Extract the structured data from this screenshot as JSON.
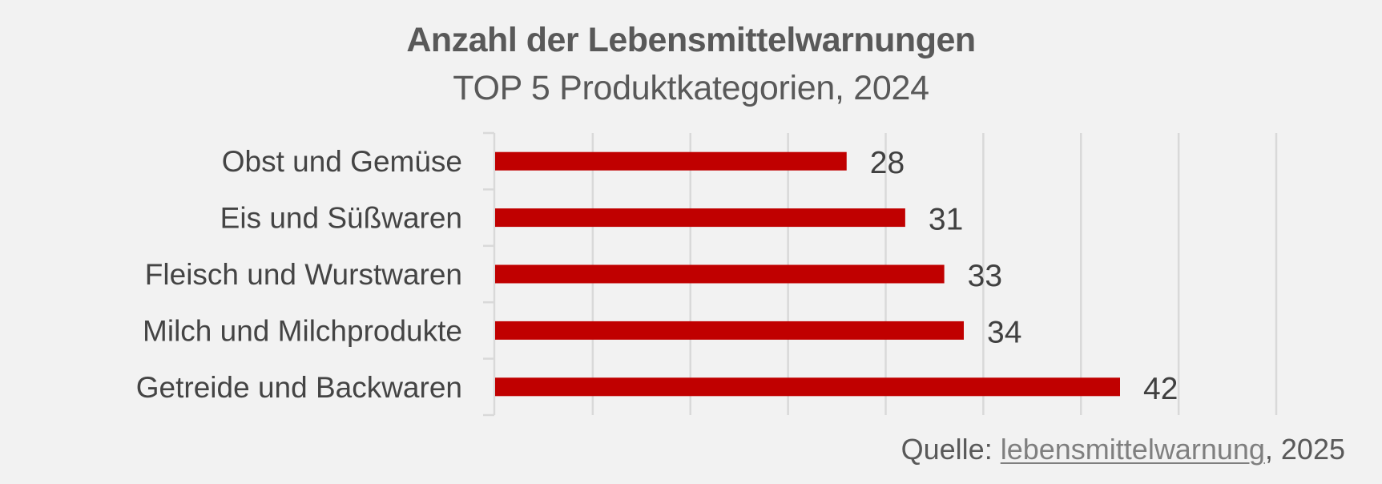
{
  "colors": {
    "background": "#f2f2f2",
    "bar": "#c00000",
    "grid": "#d9d9d9",
    "title": "#595959",
    "label": "#444444",
    "value_label": "#404040",
    "source_link": "#7f7f7f"
  },
  "source": {
    "prefix": "Quelle: ",
    "link_text": "lebensmittelwarnung",
    "suffix": ", 2025"
  },
  "chart_data": {
    "type": "bar",
    "orientation": "horizontal",
    "title": "Anzahl der Lebensmittelwarnungen",
    "subtitle": "TOP 5 Produktkategorien, 2024",
    "categories": [
      "Obst und Gemüse",
      "Eis und Süßwaren",
      "Fleisch und Wurstwaren",
      "Milch und Milchprodukte",
      "Getreide und Backwaren"
    ],
    "values": [
      28,
      31,
      33,
      34,
      42
    ],
    "data_labels": [
      "28",
      "31",
      "33",
      "34",
      "42"
    ],
    "xlabel": "",
    "ylabel": "",
    "xlim": [
      10,
      50
    ],
    "x_gridline_step": 5,
    "x_tick_labels_visible": false,
    "grid": true,
    "legend": "none"
  }
}
